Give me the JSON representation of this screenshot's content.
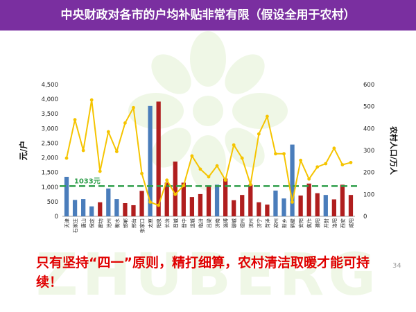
{
  "slide": {
    "title": "中央财政对各市的户均补贴非常有限（假设全用于农村）",
    "conclusion": "只有坚持“四一”原则，精打细算，农村清洁取暖才能可持续！",
    "page_number": "34",
    "watermark": "ZHUBERG"
  },
  "colors": {
    "header": "#7a2fa0",
    "bar_blue": "#4a7dbb",
    "bar_red": "#b01e1e",
    "line_yellow": "#f5c400",
    "reference_line": "#2e9e4a",
    "conclusion_text": "#e00000"
  },
  "chart_data": {
    "type": "bar+line",
    "title": "",
    "ylabel": "元/户",
    "y2label": "农村人口/万人",
    "ylim": [
      0,
      4500
    ],
    "y2lim": [
      0,
      600
    ],
    "yticks": [
      "0",
      "500",
      "1,000",
      "1,500",
      "2,000",
      "2,500",
      "3,000",
      "3,500",
      "4,000",
      "4,500"
    ],
    "y2ticks": [
      "0",
      "100",
      "200",
      "300",
      "400",
      "500",
      "600"
    ],
    "reference_line": {
      "value": 1033,
      "label": "1033元"
    },
    "categories": [
      "天津",
      "石家庄",
      "唐山",
      "保定",
      "廊坊",
      "沧州",
      "衡水",
      "邯郸",
      "邢台",
      "张家口",
      "太原",
      "阳泉",
      "长治",
      "晋城",
      "晋中",
      "运城",
      "临汾",
      "吕梁",
      "济南",
      "淄博",
      "聊城",
      "德州",
      "滨州",
      "济宁",
      "菏泽",
      "郑州",
      "新乡",
      "鹤壁",
      "安阳",
      "焦作",
      "濮阳",
      "开封",
      "洛阳",
      "西安",
      "咸阳"
    ],
    "bar_colors": [
      "blue",
      "blue",
      "blue",
      "blue",
      "red",
      "blue",
      "blue",
      "red",
      "red",
      "red",
      "blue",
      "red",
      "red",
      "red",
      "red",
      "red",
      "red",
      "red",
      "blue",
      "red",
      "red",
      "red",
      "red",
      "red",
      "red",
      "blue",
      "blue",
      "blue",
      "red",
      "red",
      "red",
      "blue",
      "red",
      "red",
      "red"
    ],
    "series": [
      {
        "name": "户均补贴（元/户）",
        "type": "bar",
        "axis": "left",
        "values": [
          1350,
          560,
          590,
          340,
          480,
          950,
          590,
          450,
          380,
          870,
          3770,
          3920,
          1150,
          1870,
          1150,
          660,
          760,
          1050,
          1080,
          1290,
          550,
          730,
          1080,
          480,
          400,
          880,
          610,
          2450,
          710,
          1120,
          790,
          730,
          580,
          1080,
          730
        ]
      },
      {
        "name": "农村人口（万人）",
        "type": "line",
        "axis": "right",
        "values": [
          265,
          440,
          300,
          530,
          205,
          385,
          295,
          425,
          495,
          195,
          65,
          50,
          165,
          100,
          140,
          275,
          215,
          180,
          230,
          165,
          325,
          265,
          145,
          375,
          455,
          285,
          285,
          65,
          255,
          170,
          225,
          240,
          310,
          235,
          245
        ]
      }
    ]
  }
}
